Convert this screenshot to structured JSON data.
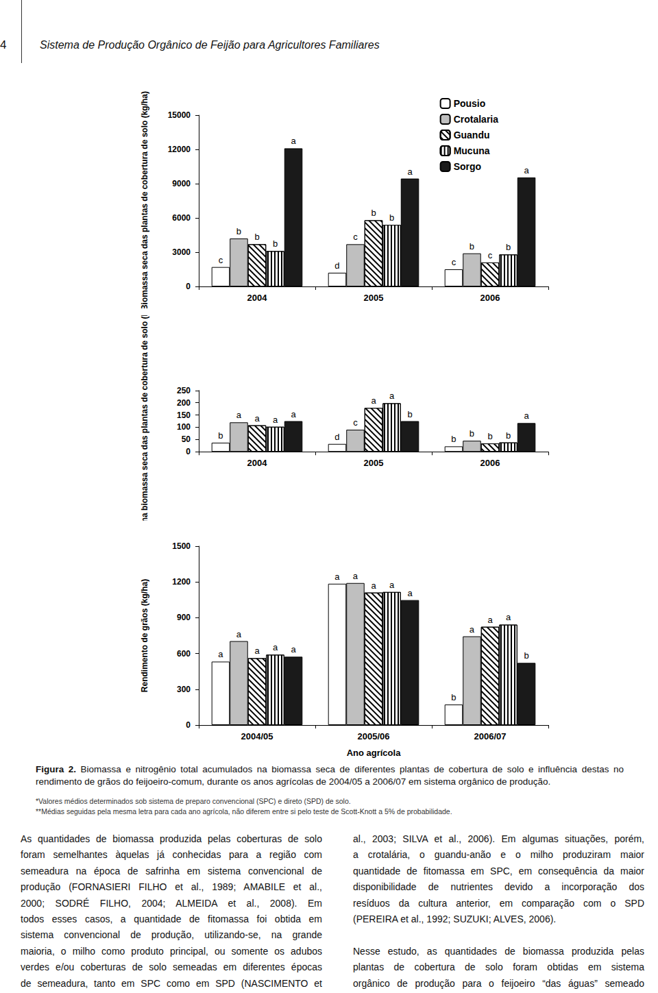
{
  "header": {
    "page_number": "4",
    "title": "Sistema de Produção Orgânico de Feijão para Agricultores Familiares"
  },
  "chart_data": [
    {
      "type": "bar",
      "y_label": "Biomassa seca das plantas de cobertura de solo (kg/ha)",
      "categories": [
        "2004",
        "2005",
        "2006"
      ],
      "series": [
        {
          "name": "Pousio",
          "color": "#ffffff",
          "values": [
            1700,
            1200,
            1500
          ],
          "letters": [
            "c",
            "d",
            "c"
          ]
        },
        {
          "name": "Crotalaria",
          "color": "#bfbfbf",
          "values": [
            4200,
            3700,
            2900
          ],
          "letters": [
            "b",
            "c",
            "b"
          ]
        },
        {
          "name": "Guandu",
          "color": "#ffffff",
          "values": [
            3700,
            5800,
            2100
          ],
          "letters": [
            "b",
            "b",
            "c"
          ]
        },
        {
          "name": "Mucuna",
          "color": "#ffffff",
          "values": [
            3100,
            5400,
            2800
          ],
          "letters": [
            "b",
            "b",
            "b"
          ]
        },
        {
          "name": "Sorgo",
          "color": "#1a1a1a",
          "values": [
            12100,
            9450,
            9550
          ],
          "letters": [
            "a",
            "a",
            "a"
          ]
        }
      ],
      "ylim": [
        0,
        15000
      ],
      "yticks": [
        0,
        3000,
        6000,
        9000,
        12000,
        15000
      ],
      "grid": false,
      "legend": "top right"
    },
    {
      "type": "bar",
      "y_label": "N total na biomassa seca das plantas de cobertura de solo (kg/ha)",
      "categories": [
        "2004",
        "2005",
        "2006"
      ],
      "series": [
        {
          "name": "Pousio",
          "color": "#ffffff",
          "values": [
            37,
            32,
            22
          ],
          "letters": [
            "b",
            "d",
            "b"
          ]
        },
        {
          "name": "Crotalaria",
          "color": "#bfbfbf",
          "values": [
            120,
            90,
            45
          ],
          "letters": [
            "a",
            "c",
            "b"
          ]
        },
        {
          "name": "Guandu",
          "color": "#ffffff",
          "values": [
            108,
            179,
            34
          ],
          "letters": [
            "a",
            "a",
            "b"
          ]
        },
        {
          "name": "Mucuna",
          "color": "#ffffff",
          "values": [
            102,
            198,
            38
          ],
          "letters": [
            "a",
            "a",
            "b"
          ]
        },
        {
          "name": "Sorgo",
          "color": "#1a1a1a",
          "values": [
            125,
            125,
            117
          ],
          "letters": [
            "a",
            "b",
            "a"
          ]
        }
      ],
      "ylim": [
        0,
        250
      ],
      "yticks": [
        0,
        50,
        100,
        150,
        200,
        250
      ],
      "grid": false
    },
    {
      "type": "bar",
      "y_label": "Rendimento de grãos (kg/ha)",
      "x_label": "Ano agrícola",
      "categories": [
        "2004/05",
        "2005/06",
        "2006/07"
      ],
      "series": [
        {
          "name": "Pousio",
          "color": "#ffffff",
          "values": [
            532,
            1185,
            172
          ],
          "letters": [
            "a",
            "a",
            "b"
          ]
        },
        {
          "name": "Crotalaria",
          "color": "#bfbfbf",
          "values": [
            704,
            1191,
            744
          ],
          "letters": [
            "a",
            "a",
            "a"
          ]
        },
        {
          "name": "Guandu",
          "color": "#ffffff",
          "values": [
            561,
            1111,
            824
          ],
          "letters": [
            "a",
            "a",
            "a"
          ]
        },
        {
          "name": "Mucuna",
          "color": "#ffffff",
          "values": [
            590,
            1116,
            842
          ],
          "letters": [
            "a",
            "a",
            "a"
          ]
        },
        {
          "name": "Sorgo",
          "color": "#1a1a1a",
          "values": [
            573,
            1048,
            521
          ],
          "letters": [
            "a",
            "a",
            "b"
          ]
        }
      ],
      "ylim": [
        0,
        1500
      ],
      "yticks": [
        0,
        300,
        600,
        900,
        1200,
        1500
      ],
      "grid": false
    }
  ],
  "caption": {
    "label": "Figura 2.",
    "text": "Biomassa e nitrogênio total acumulados na biomassa seca de diferentes plantas de cobertura de solo e influência destas no rendimento de grãos do feijoeiro-comum, durante os anos agrícolas de 2004/05 a 2006/07 em sistema orgânico de produção."
  },
  "notes": [
    "*Valores médios determinados sob sistema de preparo convencional (SPC) e direto (SPD) de solo.",
    "**Médias seguidas pela mesma letra para cada ano agrícola, não diferem entre si pelo teste de Scott-Knott a 5% de probabilidade."
  ],
  "body": {
    "columns": [
      [
        [
          "As quantidades de biomassa produzida pelas coberturas de solo",
          "foram semelhantes àquelas já conhecidas para a região com",
          "semeadura na época de safrinha em sistema convencional de",
          "produção (FORNASIERI FILHO et al., 1989; AMABILE et al.,",
          "2000; SODRÉ FILHO, 2004; ALMEIDA et al., 2008). Em",
          "todos esses casos, a quantidade de fitomassa foi obtida em",
          "sistema convencional de produção, utilizando-se, na grande",
          "maioria, o milho como produto principal, ou somente os adubos",
          "verdes e/ou coberturas de solo semeadas em diferentes épocas",
          "de semeadura, tanto em SPC como em SPD (NASCIMENTO et"
        ]
      ],
      [
        [
          "al., 2003; SILVA et al., 2006). Em algumas situações, porém,",
          "a crotalária, o guandu-anão e o milho produziram maior",
          "quantidade de fitomassa em SPC, em consequência da maior",
          "disponibilidade de nutrientes devido a incorporação dos",
          "resíduos da cultura anterior, em comparação com o SPD",
          "(PEREIRA et al., 1992; SUZUKI; ALVES, 2006)."
        ],
        [
          "Nesse estudo, as quantidades de biomassa produzida pelas",
          "plantas de cobertura de solo foram obtidas em sistema",
          "orgânico de produção para o feijoeiro “das águas” semeado"
        ]
      ]
    ]
  }
}
